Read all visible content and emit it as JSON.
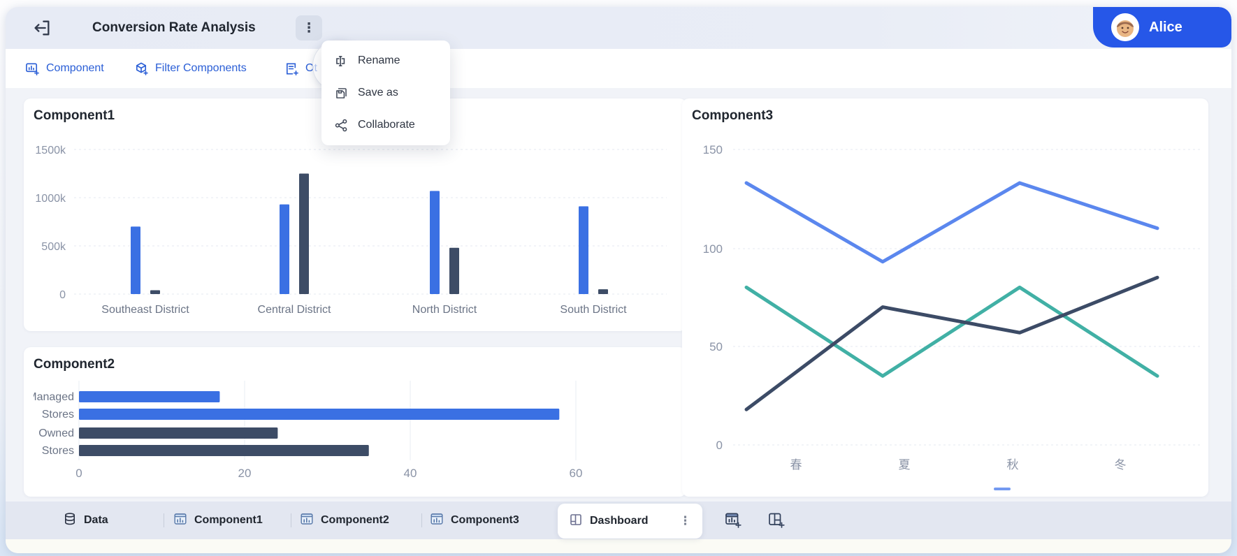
{
  "header": {
    "title": "Conversion Rate Analysis",
    "user_name": "Alice",
    "more_icon": "kebab-vertical",
    "exit_icon": "exit-left"
  },
  "toolbar": {
    "items": [
      {
        "icon": "add-component-icon",
        "label": "Component"
      },
      {
        "icon": "filter-components-icon",
        "label": "Filter Components"
      },
      {
        "icon": "add-other-icon",
        "label": "Ot"
      }
    ]
  },
  "context_menu": {
    "items": [
      {
        "icon": "rename-icon",
        "label": "Rename"
      },
      {
        "icon": "save-as-icon",
        "label": "Save as"
      },
      {
        "icon": "collaborate-icon",
        "label": "Collaborate"
      }
    ]
  },
  "cards": {
    "component1": {
      "title": "Component1"
    },
    "component2": {
      "title": "Component2"
    },
    "component3": {
      "title": "Component3"
    }
  },
  "chart_data": [
    {
      "id": "component1",
      "type": "bar",
      "title": "Component1",
      "categories": [
        "Southeast District",
        "Central District",
        "North District",
        "South District"
      ],
      "series": [
        {
          "name": "series-blue",
          "color": "#3A70E3",
          "values": [
            700,
            930,
            1070,
            910
          ]
        },
        {
          "name": "series-dark",
          "color": "#3D4C66",
          "values": [
            40,
            1250,
            480,
            50
          ]
        }
      ],
      "y_ticks": [
        "1500k",
        "1000k",
        "500k",
        "0"
      ],
      "ylim": [
        0,
        1500
      ],
      "unit": "k",
      "grid": true,
      "legend": "none"
    },
    {
      "id": "component2",
      "type": "bar-horizontal",
      "title": "Component2",
      "groups": [
        {
          "label_lines": [
            "Managed",
            "Stores"
          ],
          "color": "#3A70E3",
          "values": [
            17,
            58
          ]
        },
        {
          "label_lines": [
            "Owned",
            "Stores"
          ],
          "color": "#3D4C66",
          "values": [
            24,
            35
          ]
        }
      ],
      "x_ticks": [
        "0",
        "20",
        "40",
        "60"
      ],
      "xlim": [
        0,
        60
      ],
      "grid": true,
      "legend": "none"
    },
    {
      "id": "component3",
      "type": "line",
      "title": "Component3",
      "categories": [
        "春",
        "夏",
        "秋",
        "冬"
      ],
      "series": [
        {
          "name": "line-blue",
          "color": "#5B87EE",
          "values": [
            133,
            93,
            133,
            110
          ]
        },
        {
          "name": "line-teal",
          "color": "#41B0A5",
          "values": [
            80,
            35,
            80,
            35
          ]
        },
        {
          "name": "line-dark",
          "color": "#3C4B66",
          "values": [
            18,
            70,
            57,
            85
          ]
        }
      ],
      "y_ticks": [
        "150",
        "100",
        "50",
        "0"
      ],
      "ylim": [
        0,
        150
      ],
      "grid": true,
      "legend": "none"
    }
  ],
  "tab_bar": {
    "tabs": [
      {
        "icon": "database-icon",
        "label": "Data",
        "active": false
      },
      {
        "icon": "chart-sheet-icon",
        "label": "Component1",
        "active": false
      },
      {
        "icon": "chart-sheet-icon",
        "label": "Component2",
        "active": false
      },
      {
        "icon": "chart-sheet-icon",
        "label": "Component3",
        "active": false
      },
      {
        "icon": "dashboard-icon",
        "label": "Dashboard",
        "active": true,
        "kebab": "⋮"
      }
    ],
    "actions": [
      {
        "icon": "add-chart-icon"
      },
      {
        "icon": "add-dashboard-icon"
      }
    ]
  },
  "glyphs": {
    "kebab": "⋮"
  },
  "colors": {
    "accent_blue": "#2A5ED6",
    "badge_blue": "#2657E8",
    "bar_blue": "#3A70E3",
    "bar_dark": "#3D4C66",
    "line_blue": "#5B87EE",
    "line_teal": "#41B0A5",
    "line_dark": "#3C4B66"
  }
}
